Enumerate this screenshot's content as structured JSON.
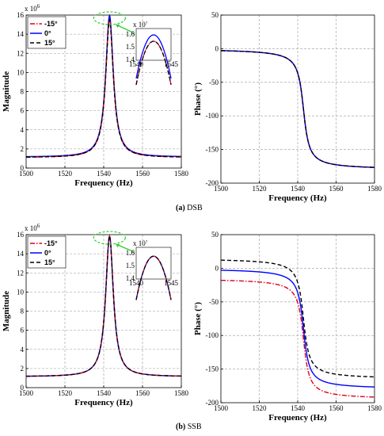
{
  "captions": [
    {
      "label": "(a)",
      "text": "DSB"
    },
    {
      "label": "(b)",
      "text": "SSB"
    }
  ],
  "chart_data": [
    {
      "type": "line",
      "id": "dsb-magnitude",
      "xlabel": "Frequency (Hz)",
      "ylabel": "Magnitude",
      "y_exponent": "x 10^6",
      "xlim": [
        1500,
        1580
      ],
      "ylim": [
        0,
        16
      ],
      "xticks": [
        "1500",
        "1520",
        "1540",
        "1560",
        "1580"
      ],
      "yticks": [
        "0",
        "2",
        "4",
        "6",
        "8",
        "10",
        "12",
        "14",
        "16"
      ],
      "grid": true,
      "legend_position": "top-left",
      "peak_frequency": 1543,
      "series": [
        {
          "name": "-15°",
          "color": "#e0001b",
          "style": "dashdot",
          "peak": 15.5,
          "base": 1.1
        },
        {
          "name": "0°",
          "color": "#0000ff",
          "style": "solid",
          "peak": 15.95,
          "base": 1.15
        },
        {
          "name": "15°",
          "color": "#000000",
          "style": "dashed",
          "peak": 15.5,
          "base": 1.1
        }
      ],
      "inset": {
        "xlim": [
          1540,
          1545
        ],
        "ylim": [
          1.4,
          1.65
        ],
        "y_exponent": "x 10^7",
        "xticks": [
          "1540",
          "1545"
        ],
        "yticks": [
          "1.4",
          "1.5",
          "1.6"
        ],
        "peaks": [
          1.55,
          1.6,
          1.55
        ]
      }
    },
    {
      "type": "line",
      "id": "dsb-phase",
      "xlabel": "Frequency (Hz)",
      "ylabel": "Phase (°)",
      "xlim": [
        1500,
        1580
      ],
      "ylim": [
        -200,
        50
      ],
      "xticks": [
        "1500",
        "1520",
        "1540",
        "1560",
        "1580"
      ],
      "yticks": [
        "50",
        "0",
        "-50",
        "-100",
        "-150",
        "-200"
      ],
      "grid": true,
      "series": [
        {
          "name": "-15°",
          "color": "#e0001b",
          "style": "dashdot",
          "offset": 0
        },
        {
          "name": "0°",
          "color": "#0000ff",
          "style": "solid",
          "offset": 0
        },
        {
          "name": "15°",
          "color": "#000000",
          "style": "dashed",
          "offset": 0
        }
      ]
    },
    {
      "type": "line",
      "id": "ssb-magnitude",
      "xlabel": "Frequency (Hz)",
      "ylabel": "Magnitude",
      "y_exponent": "x 10^6",
      "xlim": [
        1500,
        1580
      ],
      "ylim": [
        0,
        16
      ],
      "xticks": [
        "1500",
        "1520",
        "1540",
        "1560",
        "1580"
      ],
      "yticks": [
        "0",
        "2",
        "4",
        "6",
        "8",
        "10",
        "12",
        "14",
        "16"
      ],
      "grid": true,
      "legend_position": "top-left",
      "peak_frequency": 1543,
      "series": [
        {
          "name": "-15°",
          "color": "#e0001b",
          "style": "dashdot",
          "peak": 15.85,
          "base": 1.15
        },
        {
          "name": "0°",
          "color": "#0000ff",
          "style": "solid",
          "peak": 15.85,
          "base": 1.15
        },
        {
          "name": "15°",
          "color": "#000000",
          "style": "dashed",
          "peak": 15.85,
          "base": 1.15
        }
      ],
      "inset": {
        "xlim": [
          1540,
          1545
        ],
        "ylim": [
          1.4,
          1.65
        ],
        "y_exponent": "x 10^7",
        "xticks": [
          "1540",
          "1545"
        ],
        "yticks": [
          "1.4",
          "1.5",
          "1.6"
        ],
        "peaks": [
          1.58,
          1.58,
          1.58
        ]
      }
    },
    {
      "type": "line",
      "id": "ssb-phase",
      "xlabel": "Frequency (Hz)",
      "ylabel": "Phase (°)",
      "xlim": [
        1500,
        1580
      ],
      "ylim": [
        -200,
        50
      ],
      "xticks": [
        "1500",
        "1520",
        "1540",
        "1560",
        "1580"
      ],
      "yticks": [
        "50",
        "0",
        "-50",
        "-100",
        "-150",
        "-200"
      ],
      "grid": true,
      "series": [
        {
          "name": "-15°",
          "color": "#e0001b",
          "style": "dashdot",
          "offset": -15
        },
        {
          "name": "0°",
          "color": "#0000ff",
          "style": "solid",
          "offset": 0
        },
        {
          "name": "15°",
          "color": "#000000",
          "style": "dashed",
          "offset": 15
        }
      ]
    }
  ]
}
